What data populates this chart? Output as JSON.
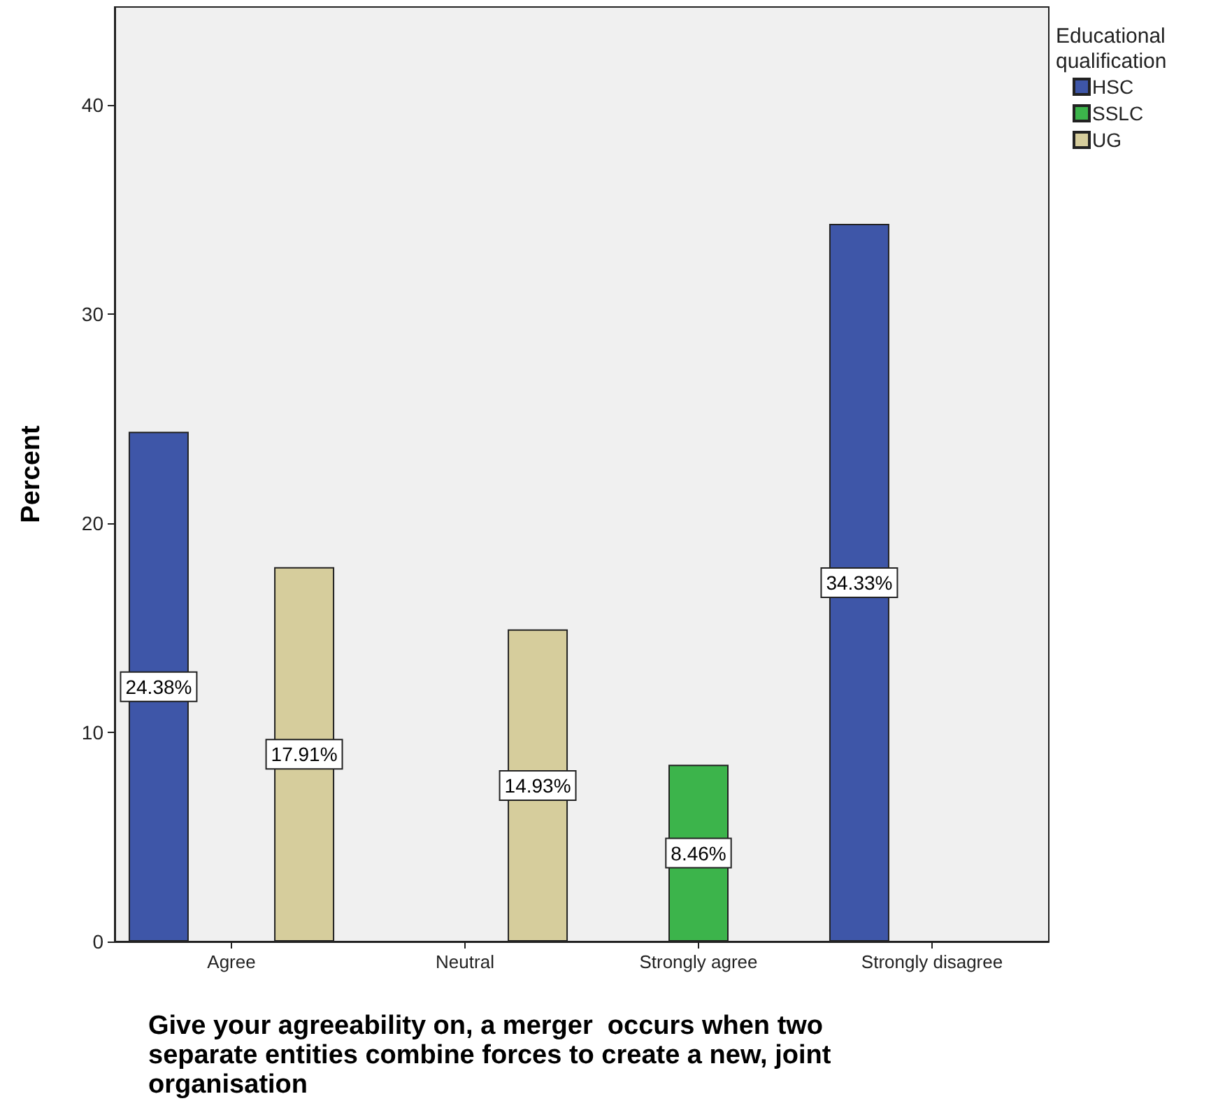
{
  "chart_data": {
    "type": "bar",
    "xlabel": "Give your agreeability on, a merger  occurs when two separate entities combine forces to create a new, joint organisation",
    "ylabel": "Percent",
    "legend_title": "Educational qualification",
    "categories": [
      "Agree",
      "Neutral",
      "Strongly agree",
      "Strongly disagree"
    ],
    "series": [
      {
        "name": "HSC",
        "color": "#3e56a8",
        "values": [
          24.38,
          null,
          null,
          34.33
        ],
        "value_labels": [
          "24.38%",
          null,
          null,
          "34.33%"
        ]
      },
      {
        "name": "SSLC",
        "color": "#3cb44b",
        "values": [
          null,
          null,
          8.46,
          null
        ],
        "value_labels": [
          null,
          null,
          "8.46%",
          null
        ]
      },
      {
        "name": "UG",
        "color": "#d6cd9c",
        "values": [
          17.91,
          14.93,
          null,
          null
        ],
        "value_labels": [
          "17.91%",
          "14.93%",
          null,
          null
        ]
      }
    ],
    "ylim": [
      0,
      44.7
    ],
    "yticks": [
      0,
      10,
      20,
      30,
      40
    ],
    "grid": false,
    "legend": "top right"
  }
}
